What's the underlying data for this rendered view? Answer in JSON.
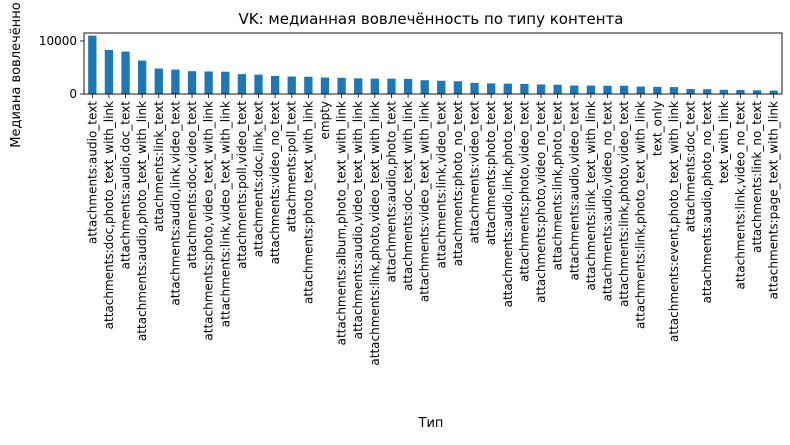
{
  "chart_data": {
    "type": "bar",
    "title": "VK: медианная вовлечённость по типу контента",
    "xlabel": "Тип",
    "ylabel": "Медиана вовлечённо",
    "ylim": [
      0,
      11500
    ],
    "yticks": [
      0,
      10000
    ],
    "grid": false,
    "legend": "none",
    "bar_color": "#1f77b4",
    "categories": [
      "attachments:audio_text",
      "attachments:doc,photo_text_with_link",
      "attachments:audio,doc_text",
      "attachments:audio,photo_text_with_link",
      "attachments:link_text",
      "attachments:audio,link,video_text",
      "attachments:doc,video_text",
      "attachments:photo,video_text_with_link",
      "attachments:link,video_text_with_link",
      "attachments:poll,video_text",
      "attachments:doc,link_text",
      "attachments:video_no_text",
      "attachments:poll_text",
      "attachments:photo_text_with_link",
      "empty",
      "attachments:album,photo_text_with_link",
      "attachments:audio,video_text_with_link",
      "attachments:link,photo,video_text_with_link",
      "attachments:audio,photo_text",
      "attachments:doc_text_with_link",
      "attachments:video_text_with_link",
      "attachments:link,video_text",
      "attachments:photo_no_text",
      "attachments:video_text",
      "attachments:photo_text",
      "attachments:audio,link,photo_text",
      "attachments:photo,video_text",
      "attachments:photo,video_no_text",
      "attachments:link,photo_text",
      "attachments:audio,video_text",
      "attachments:link_text_with_link",
      "attachments:audio,video_no_text",
      "attachments:link,photo,video_text",
      "attachments:link,photo_text_with_link",
      "text_only",
      "attachments:event,photo_text_with_link",
      "attachments:doc_text",
      "attachments:audio,photo_no_text",
      "text_with_link",
      "attachments:link,video_no_text",
      "attachments:link_no_text",
      "attachments:page_text_with_link"
    ],
    "values": [
      11000,
      8300,
      8000,
      6300,
      4800,
      4600,
      4300,
      4250,
      4200,
      3750,
      3650,
      3400,
      3300,
      3250,
      3100,
      3050,
      2950,
      2900,
      2900,
      2850,
      2600,
      2500,
      2400,
      2100,
      2000,
      1950,
      1900,
      1800,
      1750,
      1600,
      1600,
      1550,
      1550,
      1400,
      1350,
      1300,
      950,
      900,
      800,
      750,
      700,
      650
    ]
  }
}
